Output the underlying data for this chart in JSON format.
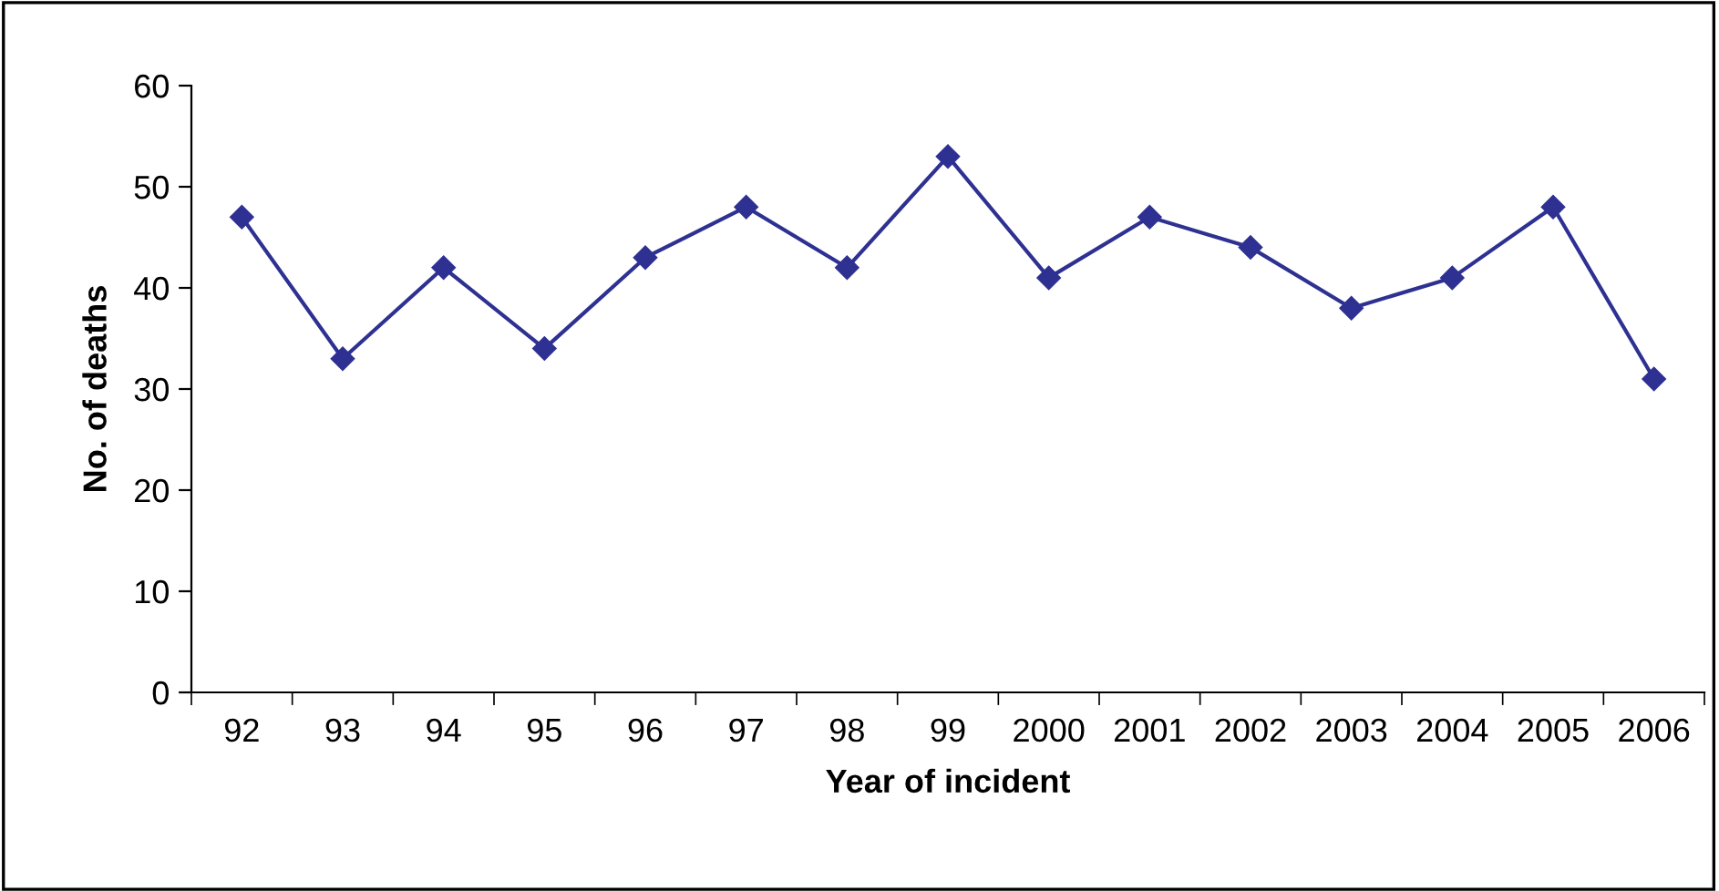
{
  "chart_data": {
    "type": "line",
    "xlabel": "Year of incident",
    "ylabel": "No. of deaths",
    "categories": [
      "92",
      "93",
      "94",
      "95",
      "96",
      "97",
      "98",
      "99",
      "2000",
      "2001",
      "2002",
      "2003",
      "2004",
      "2005",
      "2006"
    ],
    "series": [
      {
        "color": "#2e3192",
        "values": [
          47,
          33,
          42,
          34,
          43,
          48,
          42,
          53,
          41,
          47,
          44,
          38,
          41,
          48,
          31
        ]
      }
    ],
    "ylim": [
      0,
      60
    ],
    "yticks": [
      0,
      10,
      20,
      30,
      40,
      50,
      60
    ],
    "grid": false,
    "marker": "diamond",
    "line_style": "solid"
  }
}
